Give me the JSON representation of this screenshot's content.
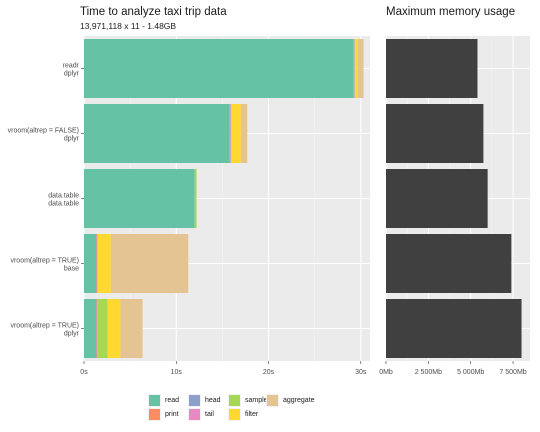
{
  "chart_data": [
    {
      "type": "bar",
      "orientation": "horizontal",
      "stacked": true,
      "title": "Time to analyze taxi trip data",
      "subtitle": "13,971,118 x 11 - 1.48GB",
      "categories": [
        {
          "line1": "readr",
          "line2": "dplyr"
        },
        {
          "line1": "vroom(altrep = FALSE)",
          "line2": "dplyr"
        },
        {
          "line1": "data.table",
          "line2": "data.table"
        },
        {
          "line1": "vroom(altrep = TRUE)",
          "line2": "base"
        },
        {
          "line1": "vroom(altrep = TRUE)",
          "line2": "dplyr"
        }
      ],
      "series": [
        {
          "name": "read",
          "color": "#66c2a5",
          "values": [
            29.2,
            15.8,
            12.0,
            1.3,
            1.3
          ]
        },
        {
          "name": "print",
          "color": "#fc8d62",
          "values": [
            0.05,
            0.05,
            0.0,
            0.05,
            0.05
          ]
        },
        {
          "name": "head",
          "color": "#8da0cb",
          "values": [
            0.05,
            0.05,
            0.0,
            0.05,
            0.05
          ]
        },
        {
          "name": "tail",
          "color": "#e78ac3",
          "values": [
            0.05,
            0.05,
            0.0,
            0.05,
            0.05
          ]
        },
        {
          "name": "sample",
          "color": "#a6d854",
          "values": [
            0.05,
            0.05,
            0.2,
            0.05,
            1.1
          ]
        },
        {
          "name": "filter",
          "color": "#ffd92f",
          "values": [
            0.3,
            1.0,
            0.0,
            1.4,
            1.4
          ]
        },
        {
          "name": "aggregate",
          "color": "#e5c494",
          "values": [
            0.6,
            0.7,
            0.0,
            8.4,
            2.4
          ]
        }
      ],
      "xlim": [
        0,
        31
      ],
      "xticks": [
        0,
        10,
        20,
        30
      ],
      "xtick_labels": [
        "0s",
        "10s",
        "20s",
        "30s"
      ],
      "grid": true,
      "legend": "bottom"
    },
    {
      "type": "bar",
      "orientation": "horizontal",
      "title": "Maximum memory usage",
      "color": "#404040",
      "values": [
        5400,
        5750,
        6000,
        7400,
        8000
      ],
      "xlim": [
        0,
        8500
      ],
      "xticks": [
        0,
        2500,
        5000,
        7500
      ],
      "xtick_labels": [
        "0Mb",
        "2 500Mb",
        "5 000Mb",
        "7 500Mb"
      ],
      "grid": true
    }
  ]
}
